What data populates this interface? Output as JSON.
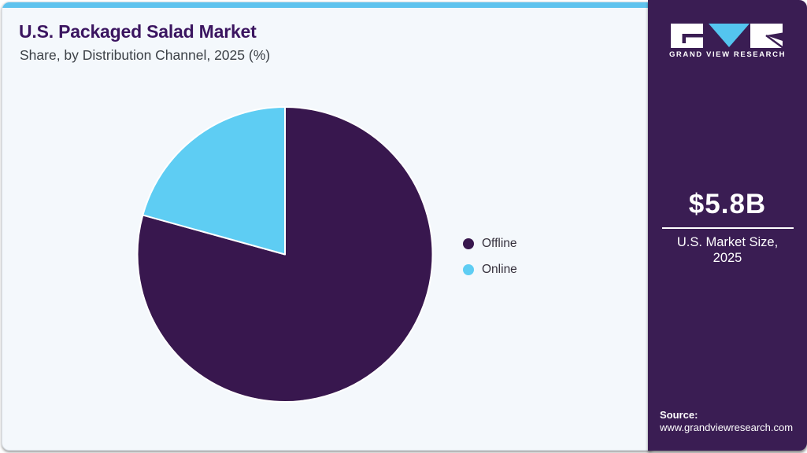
{
  "card": {
    "title": "U.S. Packaged Salad Market",
    "subtitle": "Share, by Distribution Channel, 2025 (%)"
  },
  "chart_data": {
    "type": "pie",
    "title": "U.S. Packaged Salad Market Share, by Distribution Channel, 2025 (%)",
    "categories": [
      "Offline",
      "Online"
    ],
    "values": [
      79.3,
      20.7
    ],
    "unit": "%",
    "colors": [
      "#38174e",
      "#5ecdf3"
    ],
    "start_angle": "12 o'clock, drawn clockwise",
    "legend_position": "right",
    "data_labels_shown": false,
    "note": "slice percentages estimated from arc angles; no numeric labels rendered in image"
  },
  "sidebar": {
    "logo_text": "GRAND VIEW RESEARCH",
    "market_size_value": "$5.8B",
    "market_size_label_line1": "U.S. Market Size,",
    "market_size_label_line2": "2025",
    "source_label": "Source:",
    "source_url": "www.grandviewresearch.com"
  },
  "colors": {
    "accent_bar": "#5fc3ee",
    "card_bg": "#f4f8fc",
    "card_border": "#d9dfe6",
    "sidebar_bg": "#3a1d53",
    "title_text": "#3b1560",
    "subtitle_text": "#3c4147",
    "offline_slice": "#38174e",
    "online_slice": "#5ecdf3",
    "logo_v_blue": "#54c5ef"
  }
}
